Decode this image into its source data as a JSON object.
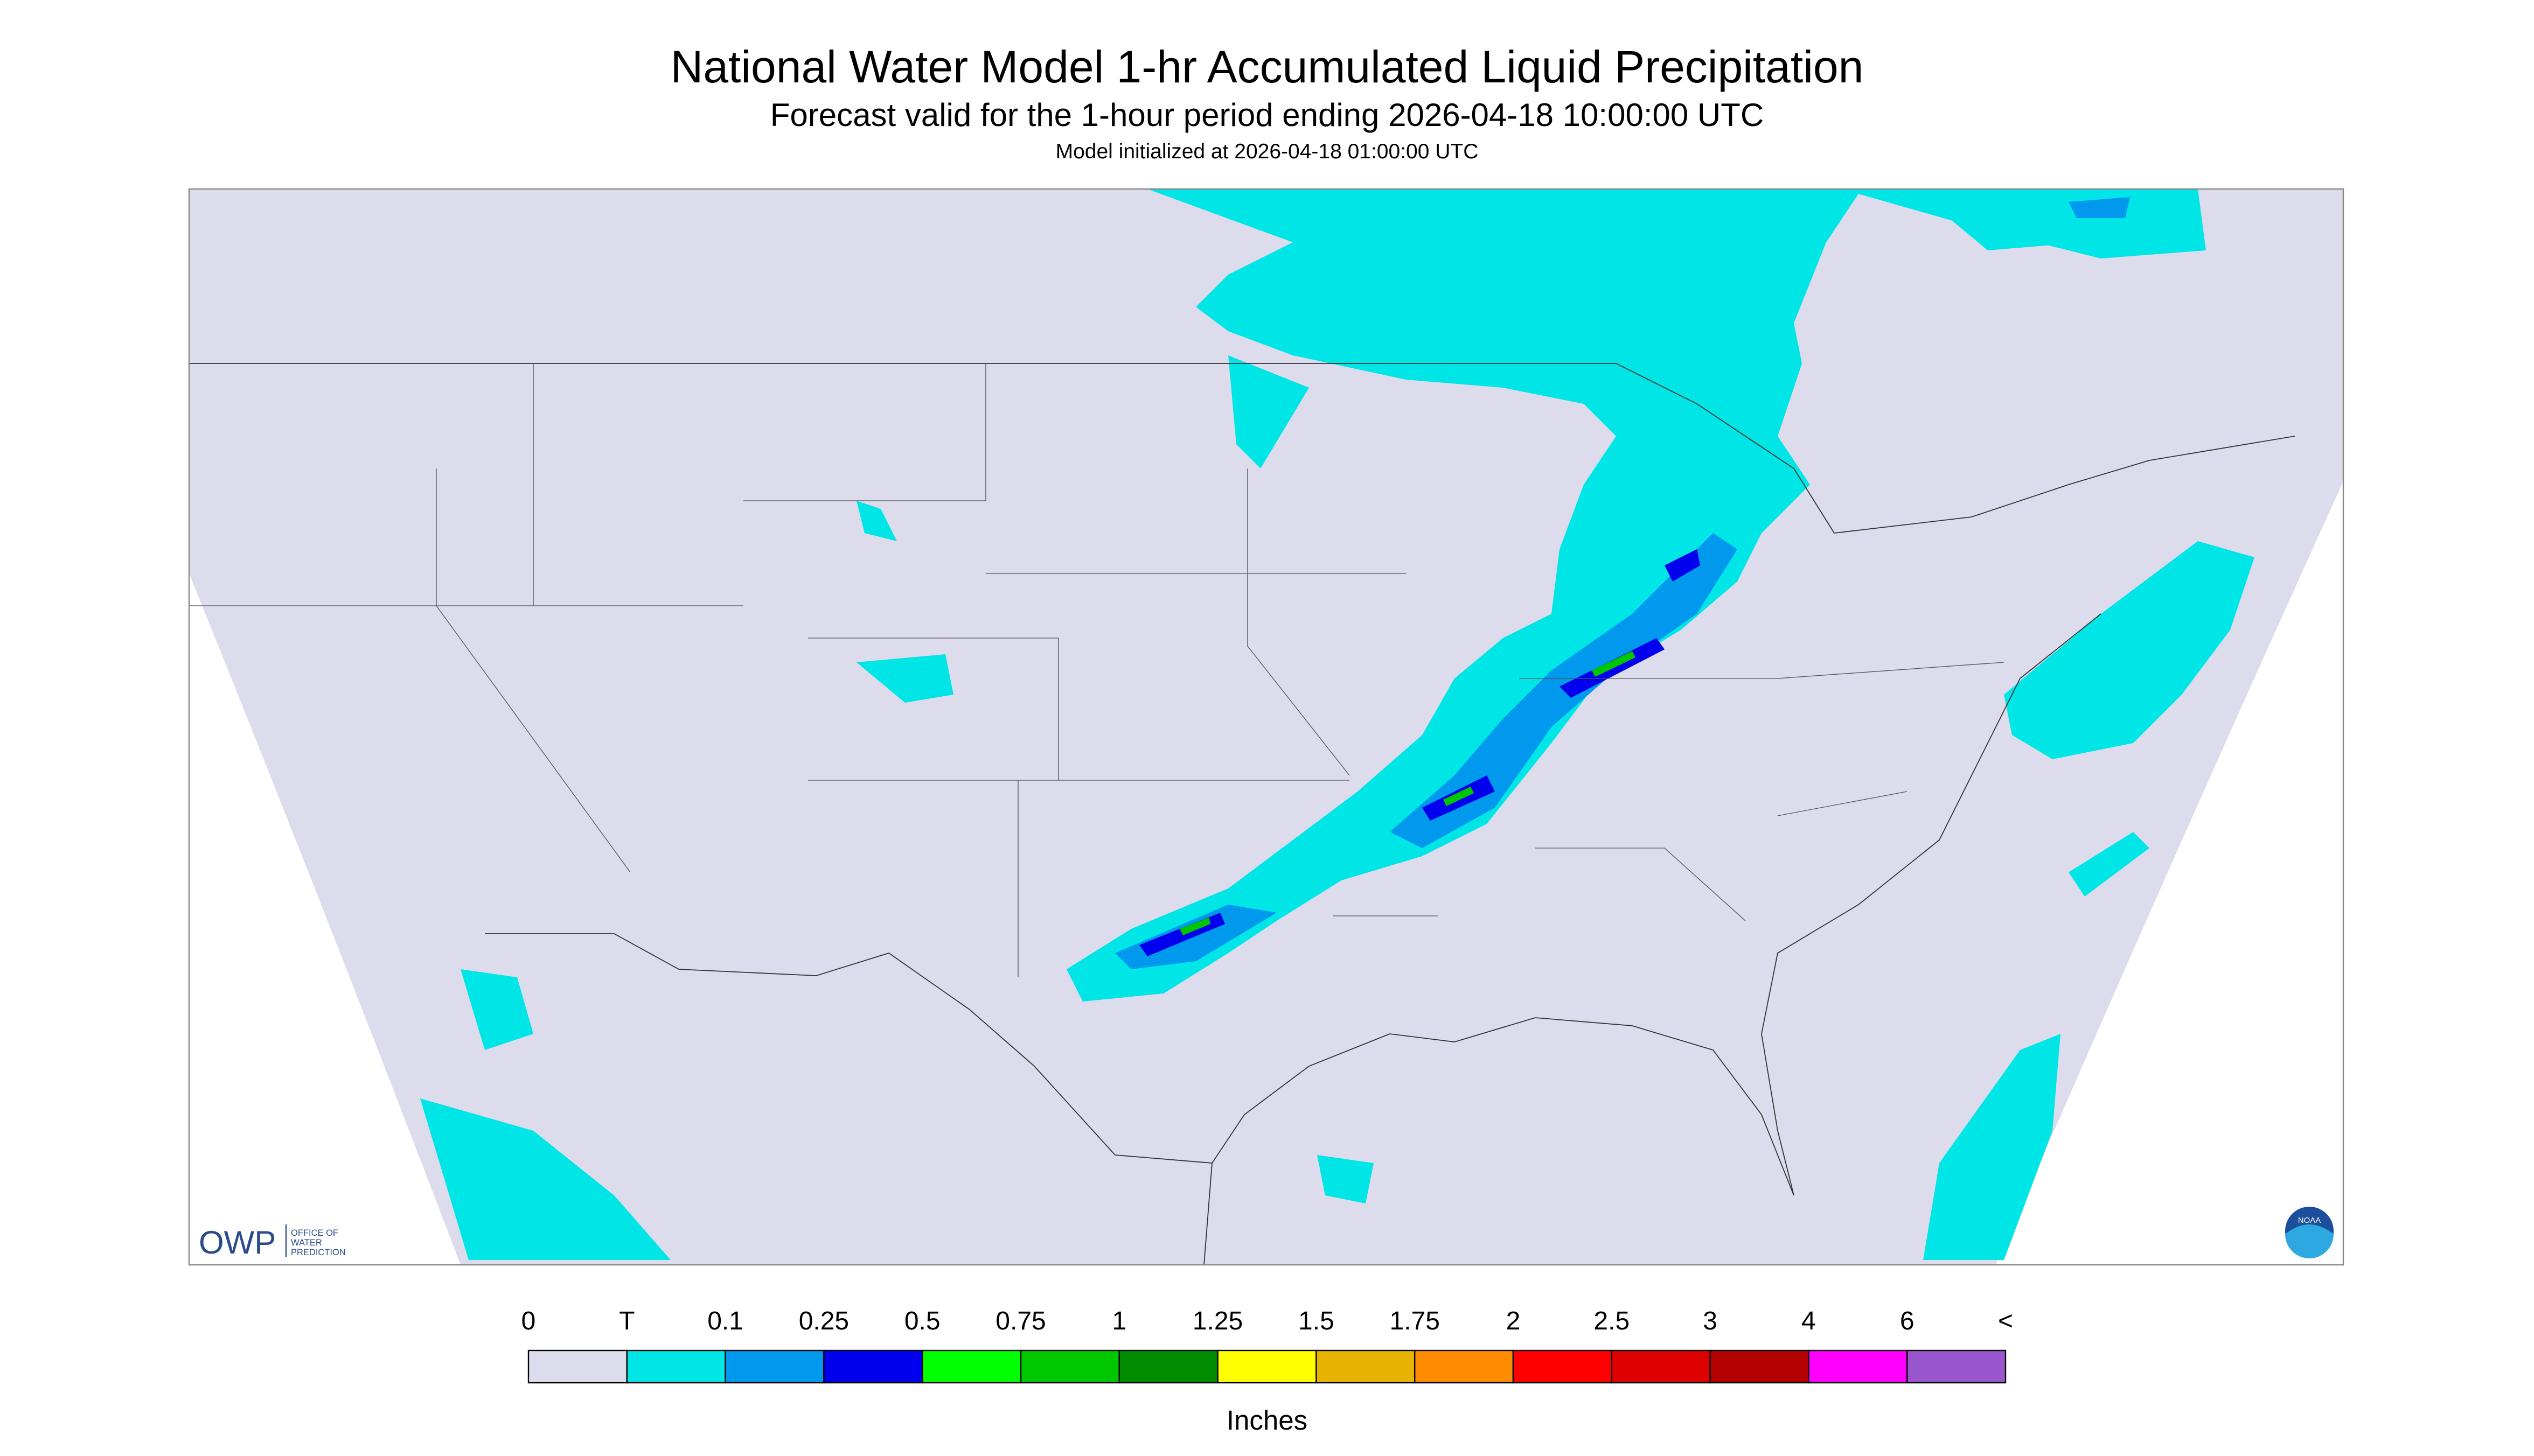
{
  "header": {
    "title": "National Water Model 1-hr Accumulated Liquid Precipitation",
    "subtitle": "Forecast valid for the 1-hour period ending 2026-04-18 10:00:00 UTC",
    "initialized": "Model initialized at 2026-04-18 01:00:00 UTC"
  },
  "legend": {
    "labels": [
      "0",
      "T",
      "0.1",
      "0.25",
      "0.5",
      "0.75",
      "1",
      "1.25",
      "1.5",
      "1.75",
      "2",
      "2.5",
      "3",
      "4",
      "6",
      "<"
    ],
    "colors": [
      "#dcdcec",
      "#00e5e5",
      "#0099ee",
      "#0000ee",
      "#00ff00",
      "#00c800",
      "#008c00",
      "#ffff00",
      "#e6b400",
      "#ff8c00",
      "#ff0000",
      "#dc0000",
      "#b40000",
      "#ff00ff",
      "#9955cc"
    ],
    "unit": "Inches"
  },
  "logos": {
    "owp": "OWP",
    "owp_name": [
      "OFFICE OF",
      "WATER",
      "PREDICTION"
    ],
    "noaa": "NOAA"
  }
}
